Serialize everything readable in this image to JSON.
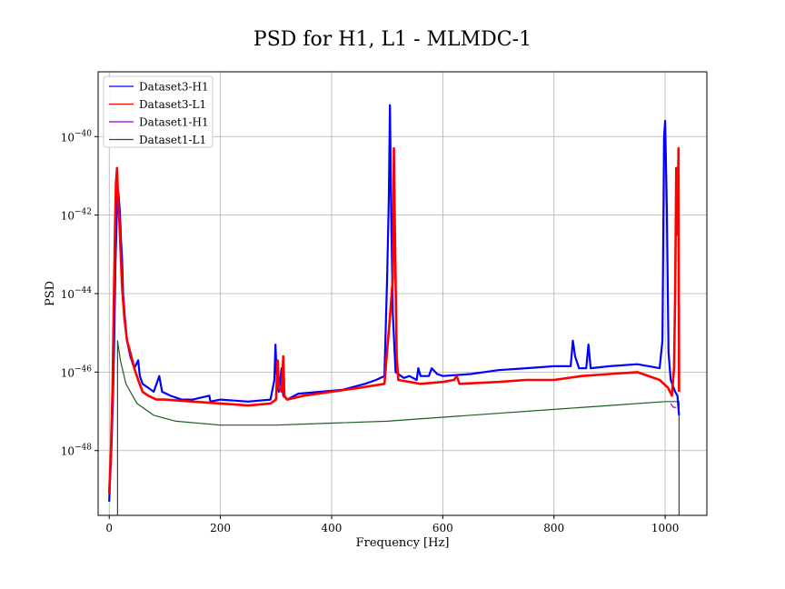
{
  "chart_data": {
    "type": "line",
    "title": "PSD for H1, L1 - MLMDC-1",
    "xlabel": "Frequency [Hz]",
    "ylabel": "PSD",
    "xlim": [
      -20,
      1075
    ],
    "ylim_log10": [
      -49.65,
      -38.35
    ],
    "y_scale": "log",
    "x_ticks": [
      0,
      200,
      400,
      600,
      800,
      1000
    ],
    "x_tick_labels": [
      "0",
      "200",
      "400",
      "600",
      "800",
      "1000"
    ],
    "y_ticks_log10": [
      -48,
      -46,
      -44,
      -42,
      -40
    ],
    "y_tick_mantissa": "10",
    "y_tick_exponents": [
      "−48",
      "−46",
      "−44",
      "−42",
      "−40"
    ],
    "grid": true,
    "legend_position": "upper-left",
    "series": [
      {
        "name": "Dataset3-H1",
        "color": "#0000ff",
        "stroke_width": 2.2,
        "points": [
          [
            0,
            -49.3
          ],
          [
            4,
            -47.9
          ],
          [
            7,
            -46.5
          ],
          [
            9,
            -45.2
          ],
          [
            11,
            -43.3
          ],
          [
            13,
            -42.3
          ],
          [
            15,
            -41.3
          ],
          [
            17,
            -41.5
          ],
          [
            19,
            -41.9
          ],
          [
            21,
            -42.6
          ],
          [
            23,
            -43.1
          ],
          [
            25,
            -44.0
          ],
          [
            28,
            -44.6
          ],
          [
            32,
            -45.2
          ],
          [
            38,
            -45.6
          ],
          [
            45,
            -45.9
          ],
          [
            52,
            -45.7
          ],
          [
            55,
            -46.1
          ],
          [
            60,
            -46.3
          ],
          [
            70,
            -46.4
          ],
          [
            80,
            -46.5
          ],
          [
            90,
            -46.1
          ],
          [
            95,
            -46.5
          ],
          [
            110,
            -46.6
          ],
          [
            130,
            -46.7
          ],
          [
            150,
            -46.7
          ],
          [
            180,
            -46.6
          ],
          [
            182,
            -46.75
          ],
          [
            200,
            -46.7
          ],
          [
            250,
            -46.75
          ],
          [
            290,
            -46.7
          ],
          [
            297,
            -46.2
          ],
          [
            299,
            -45.3
          ],
          [
            301,
            -46.0
          ],
          [
            305,
            -46.5
          ],
          [
            310,
            -45.9
          ],
          [
            313,
            -46.6
          ],
          [
            320,
            -46.7
          ],
          [
            340,
            -46.55
          ],
          [
            380,
            -46.5
          ],
          [
            420,
            -46.45
          ],
          [
            460,
            -46.3
          ],
          [
            480,
            -46.2
          ],
          [
            495,
            -46.1
          ],
          [
            500,
            -43.5
          ],
          [
            503,
            -41.5
          ],
          [
            505,
            -39.2
          ],
          [
            507,
            -41.8
          ],
          [
            510,
            -44.5
          ],
          [
            515,
            -46.0
          ],
          [
            530,
            -46.15
          ],
          [
            540,
            -46.1
          ],
          [
            553,
            -46.2
          ],
          [
            556,
            -45.9
          ],
          [
            560,
            -46.1
          ],
          [
            575,
            -46.1
          ],
          [
            580,
            -45.9
          ],
          [
            590,
            -46.05
          ],
          [
            600,
            -46.1
          ],
          [
            650,
            -46.05
          ],
          [
            700,
            -45.95
          ],
          [
            750,
            -45.9
          ],
          [
            800,
            -45.85
          ],
          [
            830,
            -45.85
          ],
          [
            834,
            -45.2
          ],
          [
            838,
            -45.6
          ],
          [
            845,
            -45.9
          ],
          [
            858,
            -45.9
          ],
          [
            862,
            -45.3
          ],
          [
            866,
            -45.9
          ],
          [
            900,
            -45.85
          ],
          [
            950,
            -45.8
          ],
          [
            990,
            -45.9
          ],
          [
            995,
            -45.2
          ],
          [
            998,
            -40.0
          ],
          [
            1000,
            -39.6
          ],
          [
            1003,
            -41.8
          ],
          [
            1006,
            -45.5
          ],
          [
            1010,
            -46.2
          ],
          [
            1018,
            -46.5
          ],
          [
            1022,
            -46.6
          ],
          [
            1025,
            -47.1
          ]
        ]
      },
      {
        "name": "Dataset3-L1",
        "color": "#ff0000",
        "stroke_width": 2.6,
        "points": [
          [
            0,
            -49.1
          ],
          [
            3,
            -48.0
          ],
          [
            6,
            -46.4
          ],
          [
            8,
            -44.5
          ],
          [
            10,
            -42.6
          ],
          [
            12,
            -41.2
          ],
          [
            14,
            -40.8
          ],
          [
            16,
            -41.6
          ],
          [
            18,
            -42.1
          ],
          [
            20,
            -42.8
          ],
          [
            23,
            -43.8
          ],
          [
            27,
            -44.6
          ],
          [
            32,
            -45.2
          ],
          [
            38,
            -45.5
          ],
          [
            45,
            -45.9
          ],
          [
            52,
            -46.2
          ],
          [
            60,
            -46.5
          ],
          [
            70,
            -46.6
          ],
          [
            85,
            -46.7
          ],
          [
            100,
            -46.7
          ],
          [
            150,
            -46.75
          ],
          [
            200,
            -46.8
          ],
          [
            250,
            -46.85
          ],
          [
            290,
            -46.8
          ],
          [
            300,
            -46.7
          ],
          [
            303,
            -45.7
          ],
          [
            305,
            -46.4
          ],
          [
            310,
            -46.5
          ],
          [
            313,
            -45.6
          ],
          [
            315,
            -46.6
          ],
          [
            320,
            -46.7
          ],
          [
            350,
            -46.6
          ],
          [
            400,
            -46.5
          ],
          [
            450,
            -46.4
          ],
          [
            495,
            -46.3
          ],
          [
            505,
            -44.6
          ],
          [
            510,
            -43.6
          ],
          [
            512,
            -40.3
          ],
          [
            514,
            -42.5
          ],
          [
            517,
            -45.6
          ],
          [
            520,
            -46.2
          ],
          [
            560,
            -46.3
          ],
          [
            600,
            -46.25
          ],
          [
            620,
            -46.2
          ],
          [
            625,
            -46.1
          ],
          [
            630,
            -46.3
          ],
          [
            700,
            -46.25
          ],
          [
            750,
            -46.2
          ],
          [
            800,
            -46.2
          ],
          [
            850,
            -46.1
          ],
          [
            900,
            -46.05
          ],
          [
            950,
            -46.0
          ],
          [
            990,
            -46.2
          ],
          [
            1005,
            -46.4
          ],
          [
            1012,
            -46.6
          ],
          [
            1016,
            -45.9
          ],
          [
            1018,
            -44.0
          ],
          [
            1020,
            -40.8
          ],
          [
            1022,
            -42.5
          ],
          [
            1024,
            -40.3
          ],
          [
            1025,
            -46.5
          ]
        ]
      },
      {
        "name": "Dataset1-H1",
        "color": "#9400d3",
        "stroke_width": 1.2,
        "points": [
          [
            1010,
            -46.8
          ],
          [
            1015,
            -46.9
          ],
          [
            1020,
            -46.9
          ]
        ]
      },
      {
        "name": "Dataset1-L1",
        "color": "#1b5e20",
        "stroke_width": 1.2,
        "points": [
          [
            15,
            -50.0
          ],
          [
            15,
            -45.2
          ],
          [
            20,
            -45.7
          ],
          [
            30,
            -46.3
          ],
          [
            50,
            -46.8
          ],
          [
            80,
            -47.1
          ],
          [
            120,
            -47.25
          ],
          [
            200,
            -47.35
          ],
          [
            300,
            -47.35
          ],
          [
            400,
            -47.3
          ],
          [
            500,
            -47.25
          ],
          [
            600,
            -47.15
          ],
          [
            700,
            -47.05
          ],
          [
            800,
            -46.95
          ],
          [
            900,
            -46.85
          ],
          [
            1000,
            -46.75
          ],
          [
            1025,
            -46.75
          ],
          [
            1025,
            -50.0
          ]
        ]
      }
    ]
  }
}
